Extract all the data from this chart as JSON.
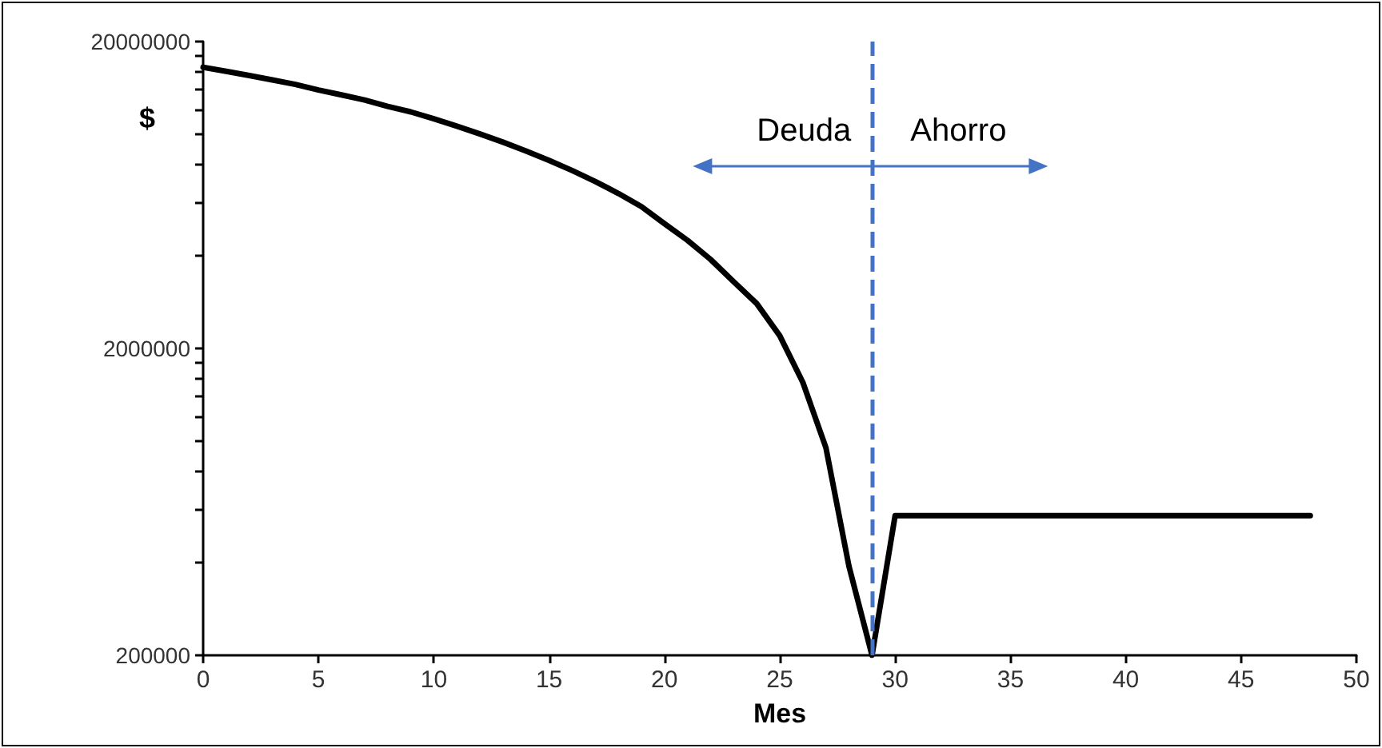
{
  "chart_data": {
    "type": "line",
    "xlabel": "Mes",
    "ylabel": "$",
    "x": [
      0,
      1,
      2,
      3,
      4,
      5,
      6,
      7,
      8,
      9,
      10,
      11,
      12,
      13,
      14,
      15,
      16,
      17,
      18,
      19,
      20,
      21,
      22,
      23,
      24,
      25,
      26,
      27,
      28,
      29,
      30,
      48
    ],
    "series": [
      {
        "color": "#000000",
        "values": [
          16500000,
          16000000,
          15500000,
          15000000,
          14500000,
          13900000,
          13400000,
          12900000,
          12300000,
          11800000,
          11200000,
          10600000,
          10000000,
          9400000,
          8800000,
          8200000,
          7600000,
          7000000,
          6400000,
          5800000,
          5100000,
          4500000,
          3900000,
          3300000,
          2800000,
          2200000,
          1550000,
          950000,
          390000,
          200000,
          570000,
          570000
        ]
      }
    ],
    "log": "y",
    "xlim": [
      0,
      50
    ],
    "xticks": [
      0,
      5,
      10,
      15,
      20,
      25,
      30,
      35,
      40,
      45,
      50
    ],
    "ylim": [
      200000,
      20000000
    ],
    "yticks": [
      200000,
      {
        "value": 400000,
        "label": null
      },
      {
        "value": 600000,
        "label": null
      },
      {
        "value": 800000,
        "label": null
      },
      {
        "value": 1000000,
        "label": null
      },
      {
        "value": 1200000,
        "label": null
      },
      {
        "value": 1400000,
        "label": null
      },
      {
        "value": 1600000,
        "label": null
      },
      {
        "value": 1800000,
        "label": null
      },
      2000000,
      {
        "value": 4000000,
        "label": null
      },
      {
        "value": 6000000,
        "label": null
      },
      {
        "value": 8000000,
        "label": null
      },
      {
        "value": 10000000,
        "label": null
      },
      {
        "value": 12000000,
        "label": null
      },
      {
        "value": 14000000,
        "label": null
      },
      {
        "value": 16000000,
        "label": null
      },
      {
        "value": 18000000,
        "label": null
      },
      20000000
    ],
    "ref_lines": [
      {
        "axis": "x",
        "value": 29,
        "color": "#4472c4",
        "line_style": "dashed"
      }
    ],
    "annotations": [
      "Deuda",
      "Ahorro"
    ],
    "grid": false,
    "marker": "none",
    "line_style": "solid"
  }
}
